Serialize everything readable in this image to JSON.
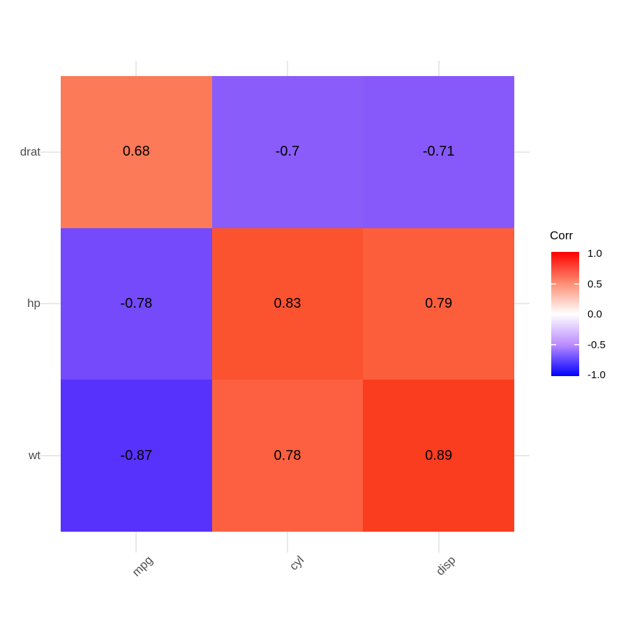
{
  "chart_data": {
    "type": "heatmap",
    "title": "",
    "x_categories": [
      "mpg",
      "cyl",
      "disp"
    ],
    "y_categories": [
      "drat",
      "hp",
      "wt"
    ],
    "values": [
      [
        0.68,
        -0.7,
        -0.71
      ],
      [
        -0.78,
        0.83,
        0.79
      ],
      [
        -0.87,
        0.78,
        0.89
      ]
    ],
    "grid": true,
    "axis_text_color": "#4D4D4D",
    "cells": [
      {
        "row": "drat",
        "col": "mpg",
        "label": "0.68",
        "value": 0.68,
        "color": "#FC7A58"
      },
      {
        "row": "drat",
        "col": "cyl",
        "label": "-0.7",
        "value": -0.7,
        "color": "#8A5CFA"
      },
      {
        "row": "drat",
        "col": "disp",
        "label": "-0.71",
        "value": -0.71,
        "color": "#8759FA"
      },
      {
        "row": "hp",
        "col": "mpg",
        "label": "-0.78",
        "value": -0.78,
        "color": "#744AFB"
      },
      {
        "row": "hp",
        "col": "cyl",
        "label": "0.83",
        "value": 0.83,
        "color": "#FB5230"
      },
      {
        "row": "hp",
        "col": "disp",
        "label": "0.79",
        "value": 0.79,
        "color": "#FC5E3C"
      },
      {
        "row": "wt",
        "col": "mpg",
        "label": "-0.87",
        "value": -0.87,
        "color": "#5731FC"
      },
      {
        "row": "wt",
        "col": "cyl",
        "label": "0.78",
        "value": 0.78,
        "color": "#FC6040"
      },
      {
        "row": "wt",
        "col": "disp",
        "label": "0.89",
        "value": 0.89,
        "color": "#FA3D1F"
      }
    ],
    "legend": {
      "title": "Corr",
      "position": "right",
      "range": [
        -1.0,
        1.0
      ],
      "ticks": [
        "1.0",
        "0.5",
        "0.0",
        "-0.5",
        "-1.0"
      ],
      "scale_colors": {
        "high": "#FF0000",
        "mid": "#FFFFFF",
        "low": "#0000FF"
      },
      "gradient_stops": [
        {
          "color": "#FF0000",
          "pos": 0
        },
        {
          "color": "#FF8C72",
          "pos": 25
        },
        {
          "color": "#FFFFFF",
          "pos": 50
        },
        {
          "color": "#BA8AFF",
          "pos": 75
        },
        {
          "color": "#0000FF",
          "pos": 100
        }
      ]
    }
  }
}
